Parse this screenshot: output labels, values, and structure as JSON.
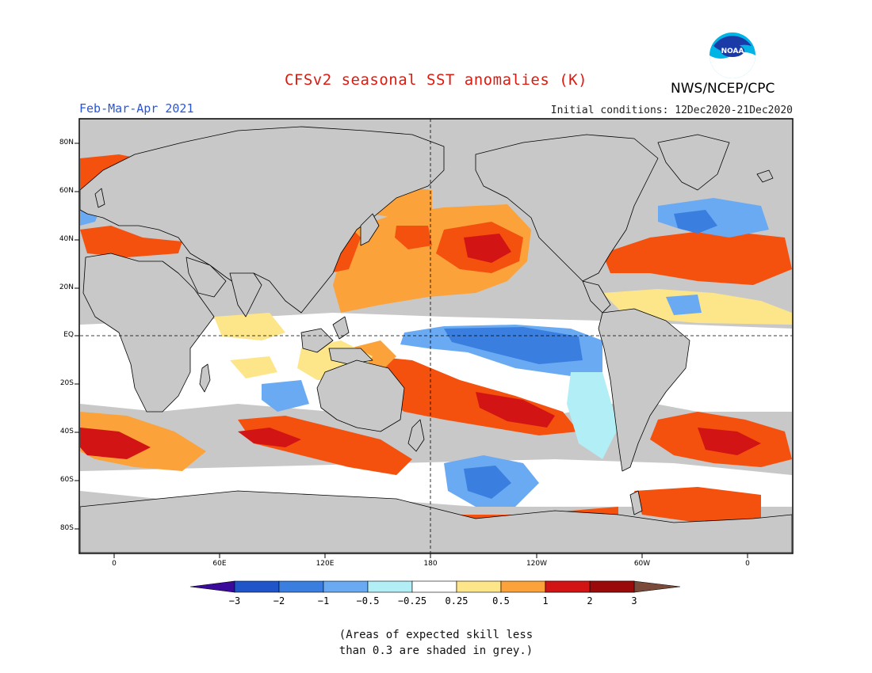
{
  "title": "CFSv2 seasonal SST anomalies (K)",
  "season": "Feb-Mar-Apr 2021",
  "initial_conditions": "Initial conditions: 12Dec2020-21Dec2020",
  "agency": "NWS/NCEP/CPC",
  "logo_text": "NOAA",
  "lat_ticks": [
    "80N",
    "60N",
    "40N",
    "20N",
    "EQ",
    "20S",
    "40S",
    "60S",
    "80S"
  ],
  "lon_ticks": [
    "0",
    "60E",
    "120E",
    "180",
    "120W",
    "60W",
    "0"
  ],
  "colorbar": {
    "labels": [
      "−3",
      "−2",
      "−1",
      "−0.5",
      "−0.25",
      "0.25",
      "0.5",
      "1",
      "2",
      "3"
    ],
    "colors": [
      "#3a0a9a",
      "#1f55c8",
      "#3a7fe0",
      "#6aaaf2",
      "#b2eef5",
      "#ffffff",
      "#fde58a",
      "#fba23a",
      "#f4500e",
      "#d21414",
      "#9a0a0a",
      "#7a4a3a"
    ]
  },
  "note_lines": [
    "(Areas of expected skill less",
    "than 0.3 are shaded in grey.)"
  ],
  "colors": {
    "land": "#c8c8c8",
    "ocean_white": "#ffffff",
    "title_red": "#e0190f",
    "season_blue": "#2a55d6"
  }
}
